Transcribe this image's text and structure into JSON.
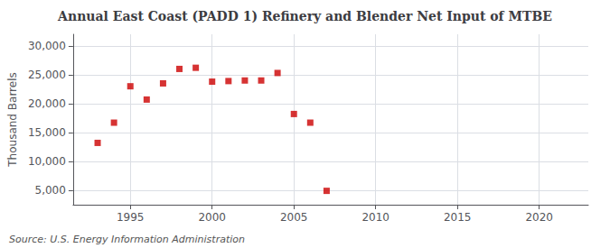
{
  "chart_data": {
    "type": "scatter",
    "title": "Annual East Coast (PADD 1) Refinery and Blender Net Input of MTBE",
    "ylabel": "Thousand Barrels",
    "annotations": [
      "Source: U.S. Energy Information Administration"
    ],
    "x": [
      1993,
      1994,
      1995,
      1996,
      1997,
      1998,
      1999,
      2000,
      2001,
      2002,
      2003,
      2004,
      2005,
      2006,
      2007
    ],
    "values": [
      13200,
      16700,
      23000,
      20700,
      23500,
      26000,
      26200,
      23800,
      23900,
      24000,
      24000,
      25300,
      18200,
      16700,
      4900
    ],
    "color": "#cc0000",
    "marker": "square",
    "xlim": [
      1991.5,
      2023
    ],
    "xticks": [
      1995,
      2000,
      2005,
      2010,
      2015,
      2020
    ],
    "ylim": [
      2500,
      32000
    ],
    "yticks": [
      {
        "value": 5000,
        "label": "5,000"
      },
      {
        "value": 10000,
        "label": "10,000"
      },
      {
        "value": 15000,
        "label": "15,000"
      },
      {
        "value": 20000,
        "label": "20,000"
      },
      {
        "value": 25000,
        "label": "25,000"
      },
      {
        "value": 30000,
        "label": "30,000"
      }
    ],
    "grid": true
  }
}
